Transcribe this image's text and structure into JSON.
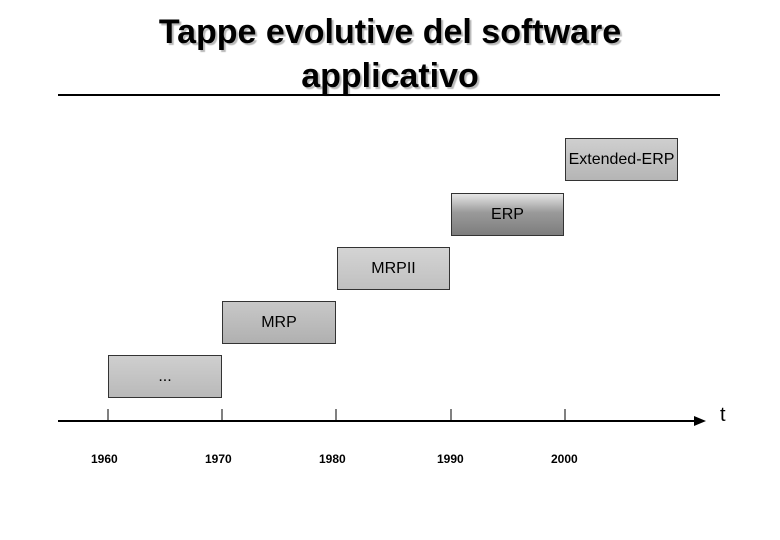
{
  "title_line1": "Tappe evolutive del software",
  "title_line2": "applicativo",
  "stages": [
    "...",
    "MRP",
    "MRPII",
    "ERP",
    "Extended-ERP"
  ],
  "axis": {
    "label": "t",
    "years": [
      "1960",
      "1970",
      "1980",
      "1990",
      "2000"
    ]
  },
  "colors": {
    "box_border": "#333333",
    "axis": "#000000"
  }
}
